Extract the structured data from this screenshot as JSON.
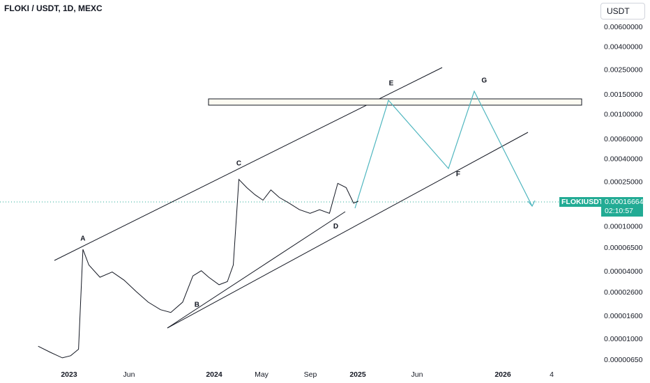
{
  "header": {
    "title": "FLOKI / USDT, 1D, MEXC",
    "currency": "USDT"
  },
  "price_tag": {
    "symbol": "FLOKIUSDT",
    "price": "0.00016664",
    "countdown": "02:10:57"
  },
  "colors": {
    "candle": "#131722",
    "projection": "#4fb6bf",
    "price": "#22ab94",
    "grid_line": "#22ab94"
  },
  "chart_data": {
    "type": "line",
    "title": "FLOKI / USDT, 1D, MEXC",
    "y_scale": "log",
    "ylim": [
      5.5e-06,
      0.0075
    ],
    "y_ticks": [
      "0.00600000",
      "0.00400000",
      "0.00250000",
      "0.00150000",
      "0.00100000",
      "0.00060000",
      "0.00040000",
      "0.00025000",
      "0.00010000",
      "0.00006500",
      "0.00004000",
      "0.00002600",
      "0.00001600",
      "0.00001000",
      "0.00000650"
    ],
    "x_ticks": [
      {
        "label": "2023",
        "bold": true
      },
      {
        "label": "Jun",
        "bold": false
      },
      {
        "label": "2024",
        "bold": true
      },
      {
        "label": "May",
        "bold": false
      },
      {
        "label": "Sep",
        "bold": false
      },
      {
        "label": "2025",
        "bold": true
      },
      {
        "label": "Jun",
        "bold": false
      },
      {
        "label": "2026",
        "bold": true
      },
      {
        "label": "4",
        "bold": false
      }
    ],
    "x": [
      "2022-10-15",
      "2022-11-15",
      "2022-12-15",
      "2023-01-05",
      "2023-01-25",
      "2023-02-05",
      "2023-02-20",
      "2023-03-20",
      "2023-04-20",
      "2023-05-20",
      "2023-06-20",
      "2023-07-20",
      "2023-08-20",
      "2023-09-15",
      "2023-10-15",
      "2023-11-10",
      "2023-12-01",
      "2023-12-20",
      "2024-01-15",
      "2024-02-05",
      "2024-02-20",
      "2024-03-05",
      "2024-03-25",
      "2024-04-15",
      "2024-05-05",
      "2024-05-25",
      "2024-06-15",
      "2024-07-10",
      "2024-08-05",
      "2024-09-01",
      "2024-09-25",
      "2024-10-20",
      "2024-11-10",
      "2024-12-01",
      "2024-12-20",
      "2025-01-01"
    ],
    "series": [
      {
        "values": [
          8.5e-06,
          7.5e-06,
          6.7e-06,
          7e-06,
          8e-06,
          6.2e-05,
          4.5e-05,
          3.5e-05,
          3.9e-05,
          3.3e-05,
          2.6e-05,
          2.1e-05,
          1.8e-05,
          1.7e-05,
          2.1e-05,
          3.6e-05,
          4e-05,
          3.5e-05,
          3e-05,
          3.2e-05,
          4.5e-05,
          0.00026,
          0.00022,
          0.00019,
          0.00017,
          0.00021,
          0.00018,
          0.00016,
          0.00014,
          0.00013,
          0.00014,
          0.00013,
          0.00024,
          0.00022,
          0.00016,
          0.00016664
        ]
      }
    ],
    "annotations": [
      {
        "label": "A",
        "date": "2023-02-05",
        "value": 6.6e-05,
        "pos": "above"
      },
      {
        "label": "B",
        "date": "2023-11-20",
        "value": 2.4e-05,
        "pos": "below"
      },
      {
        "label": "C",
        "date": "2024-03-05",
        "value": 0.00031,
        "pos": "above"
      },
      {
        "label": "D",
        "date": "2024-11-05",
        "value": 0.00012,
        "pos": "below"
      },
      {
        "label": "E",
        "date": "2025-03-25",
        "value": 0.0016,
        "pos": "above"
      },
      {
        "label": "F",
        "date": "2025-09-10",
        "value": 0.00035,
        "pos": "below"
      },
      {
        "label": "G",
        "date": "2025-11-15",
        "value": 0.0017,
        "pos": "above"
      }
    ]
  }
}
